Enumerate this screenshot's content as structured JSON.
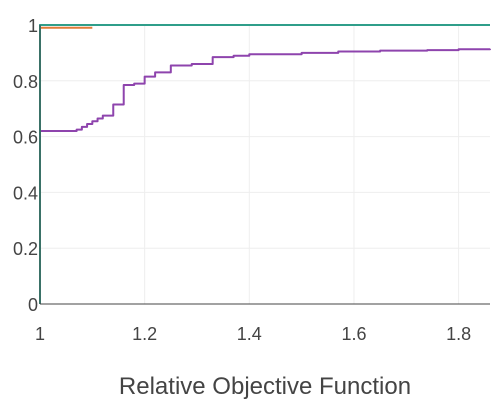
{
  "chart_data": {
    "type": "line",
    "title": "",
    "xlabel": "Relative Objective Function",
    "ylabel": "",
    "xlim": [
      1,
      1.86
    ],
    "ylim": [
      0,
      1
    ],
    "grid": true,
    "legend": "none",
    "x_ticks": [
      1,
      1.2,
      1.4,
      1.6,
      1.8
    ],
    "x_tick_labels": [
      "1",
      "1.2",
      "1.4",
      "1.6",
      "1.8"
    ],
    "y_ticks": [
      0,
      0.2,
      0.4,
      0.6,
      0.8,
      1
    ],
    "y_tick_labels": [
      "0",
      "0.2",
      "0.4",
      "0.6",
      "0.8",
      "1"
    ],
    "series": [
      {
        "color": "#e07b39",
        "step": "hv",
        "x": [
          1,
          1.0,
          1.1
        ],
        "y": [
          0,
          0.99,
          0.99
        ]
      },
      {
        "color": "#8e44ad",
        "step": "hv",
        "x": [
          1,
          1.0,
          1.07,
          1.08,
          1.09,
          1.1,
          1.11,
          1.12,
          1.14,
          1.16,
          1.18,
          1.2,
          1.22,
          1.25,
          1.29,
          1.33,
          1.37,
          1.4,
          1.5,
          1.57,
          1.65,
          1.74,
          1.8,
          1.86
        ],
        "y": [
          0,
          0.62,
          0.625,
          0.635,
          0.645,
          0.655,
          0.665,
          0.675,
          0.715,
          0.785,
          0.79,
          0.815,
          0.83,
          0.855,
          0.86,
          0.885,
          0.89,
          0.895,
          0.9,
          0.905,
          0.908,
          0.91,
          0.913,
          0.915
        ]
      },
      {
        "color": "#3a8fb7",
        "step": "hv",
        "x": [
          1,
          1.0,
          1.86
        ],
        "y": [
          0,
          1,
          1
        ]
      },
      {
        "color": "#2f9e8a",
        "step": "hv",
        "x": [
          1,
          1.0,
          1.86
        ],
        "y": [
          0,
          1,
          1
        ]
      }
    ]
  }
}
